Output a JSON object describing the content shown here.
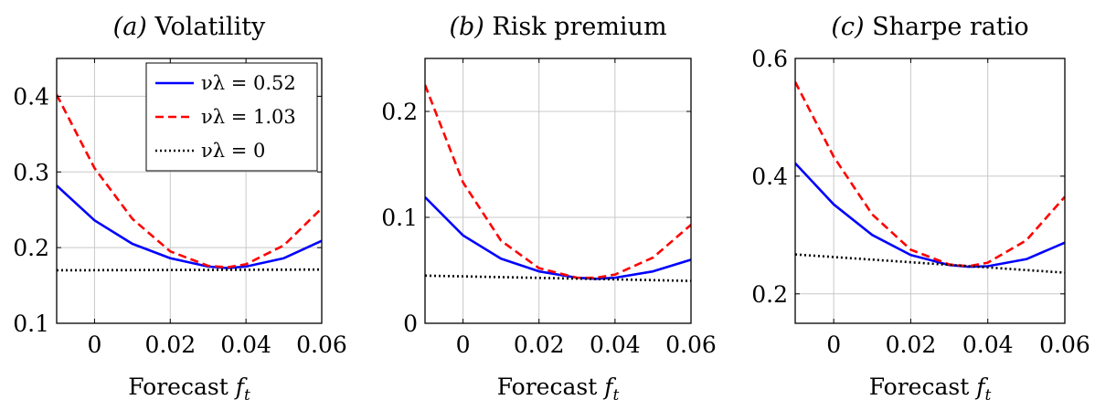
{
  "chart_data": [
    {
      "type": "line",
      "title_tag": "(a)",
      "title": "Volatility",
      "xlabel_text": "Forecast",
      "xlabel_sym": "f",
      "xlabel_sub": "t",
      "ylabel": "",
      "xlim": [
        -0.01,
        0.06
      ],
      "ylim": [
        0.1,
        0.45
      ],
      "xticks": [
        0,
        0.02,
        0.04,
        0.06
      ],
      "xtick_labels": [
        "0",
        "0.02",
        "0.04",
        "0.06"
      ],
      "yticks": [
        0.1,
        0.2,
        0.3,
        0.4
      ],
      "ytick_labels": [
        "0.1",
        "0.2",
        "0.3",
        "0.4"
      ],
      "grid": true,
      "legend_position": "top-right",
      "series": [
        {
          "name": "νλ = 0.52",
          "color": "#0000ff",
          "dash": "solid",
          "x": [
            -0.01,
            0.0,
            0.01,
            0.02,
            0.03,
            0.035,
            0.04,
            0.05,
            0.06
          ],
          "y": [
            0.282,
            0.236,
            0.205,
            0.186,
            0.175,
            0.173,
            0.175,
            0.186,
            0.209
          ]
        },
        {
          "name": "νλ = 1.03",
          "color": "#ff0000",
          "dash": "dashed",
          "x": [
            -0.01,
            0.0,
            0.01,
            0.02,
            0.03,
            0.035,
            0.04,
            0.05,
            0.06
          ],
          "y": [
            0.402,
            0.305,
            0.238,
            0.195,
            0.176,
            0.174,
            0.178,
            0.203,
            0.252
          ]
        },
        {
          "name": "νλ = 0",
          "color": "#000000",
          "dash": "dotted",
          "x": [
            -0.01,
            0.06
          ],
          "y": [
            0.17,
            0.171
          ]
        }
      ]
    },
    {
      "type": "line",
      "title_tag": "(b)",
      "title": "Risk premium",
      "xlabel_text": "Forecast",
      "xlabel_sym": "f",
      "xlabel_sub": "t",
      "ylabel": "",
      "xlim": [
        -0.01,
        0.06
      ],
      "ylim": [
        0,
        0.25
      ],
      "xticks": [
        0,
        0.02,
        0.04,
        0.06
      ],
      "xtick_labels": [
        "0",
        "0.02",
        "0.04",
        "0.06"
      ],
      "yticks": [
        0,
        0.1,
        0.2
      ],
      "ytick_labels": [
        "0",
        "0.1",
        "0.2"
      ],
      "grid": true,
      "legend_position": "none",
      "series": [
        {
          "name": "",
          "color": "#0000ff",
          "dash": "solid",
          "x": [
            -0.01,
            0.0,
            0.01,
            0.02,
            0.03,
            0.035,
            0.04,
            0.05,
            0.06
          ],
          "y": [
            0.119,
            0.083,
            0.061,
            0.049,
            0.043,
            0.042,
            0.043,
            0.049,
            0.06
          ]
        },
        {
          "name": "",
          "color": "#ff0000",
          "dash": "dashed",
          "x": [
            -0.01,
            0.0,
            0.01,
            0.02,
            0.03,
            0.035,
            0.04,
            0.05,
            0.06
          ],
          "y": [
            0.225,
            0.133,
            0.078,
            0.052,
            0.043,
            0.043,
            0.046,
            0.062,
            0.093
          ]
        },
        {
          "name": "",
          "color": "#000000",
          "dash": "dotted",
          "x": [
            -0.01,
            0.06
          ],
          "y": [
            0.045,
            0.04
          ]
        }
      ]
    },
    {
      "type": "line",
      "title_tag": "(c)",
      "title": "Sharpe ratio",
      "xlabel_text": "Forecast",
      "xlabel_sym": "f",
      "xlabel_sub": "t",
      "ylabel": "",
      "xlim": [
        -0.01,
        0.06
      ],
      "ylim": [
        0.15,
        0.6
      ],
      "xticks": [
        0,
        0.02,
        0.04,
        0.06
      ],
      "xtick_labels": [
        "0",
        "0.02",
        "0.04",
        "0.06"
      ],
      "yticks": [
        0.2,
        0.4,
        0.6
      ],
      "ytick_labels": [
        "0.2",
        "0.4",
        "0.6"
      ],
      "grid": true,
      "legend_position": "none",
      "series": [
        {
          "name": "",
          "color": "#0000ff",
          "dash": "solid",
          "x": [
            -0.01,
            0.0,
            0.01,
            0.02,
            0.03,
            0.035,
            0.04,
            0.05,
            0.06
          ],
          "y": [
            0.422,
            0.352,
            0.3,
            0.266,
            0.249,
            0.246,
            0.247,
            0.259,
            0.287
          ]
        },
        {
          "name": "",
          "color": "#ff0000",
          "dash": "dashed",
          "x": [
            -0.01,
            0.0,
            0.01,
            0.02,
            0.03,
            0.035,
            0.04,
            0.05,
            0.06
          ],
          "y": [
            0.56,
            0.433,
            0.335,
            0.275,
            0.25,
            0.247,
            0.253,
            0.291,
            0.365
          ]
        },
        {
          "name": "",
          "color": "#000000",
          "dash": "dotted",
          "x": [
            -0.01,
            0.06
          ],
          "y": [
            0.267,
            0.236
          ]
        }
      ]
    }
  ]
}
